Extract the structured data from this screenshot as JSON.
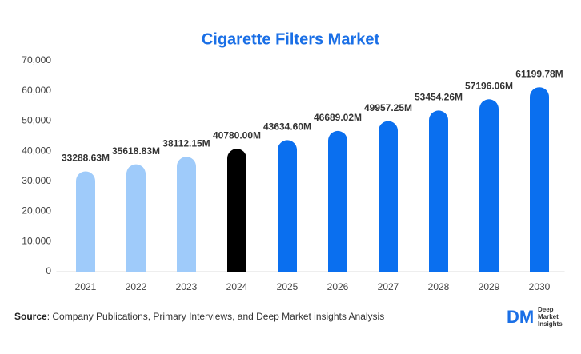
{
  "chart_data": {
    "type": "bar",
    "title": "Cigarette Filters Market",
    "categories": [
      "2021",
      "2022",
      "2023",
      "2024",
      "2025",
      "2026",
      "2027",
      "2028",
      "2029",
      "2030"
    ],
    "values": [
      33288.63,
      35618.83,
      38112.15,
      40780.0,
      43634.6,
      46689.02,
      49957.25,
      53454.26,
      57196.06,
      61199.78
    ],
    "value_labels": [
      "33288.63M",
      "35618.83M",
      "38112.15M",
      "40780.00M",
      "43634.60M",
      "46689.02M",
      "49957.25M",
      "53454.26M",
      "57196.06M",
      "61199.78M"
    ],
    "colors": [
      "#9fcbfa",
      "#9fcbfa",
      "#9fcbfa",
      "#000000",
      "#0a6fef",
      "#0a6fef",
      "#0a6fef",
      "#0a6fef",
      "#0a6fef",
      "#0a6fef"
    ],
    "ylim": [
      0,
      70000
    ],
    "yticks": [
      0,
      {
        "value": 10000,
        "label": "10,000"
      },
      {
        "value": 20000,
        "label": "20,000"
      },
      {
        "value": 30000,
        "label": "30,000"
      },
      {
        "value": 40000,
        "label": "40,000"
      },
      {
        "value": 50000,
        "label": "50,000"
      },
      {
        "value": 60000,
        "label": "60,000"
      },
      {
        "value": 70000,
        "label": "70,000"
      }
    ],
    "grid": false
  },
  "source": {
    "label": "Source",
    "text": ": Company Publications, Primary Interviews, and Deep Market insights Analysis"
  },
  "logo": {
    "mark": "DM",
    "lines": [
      "Deep",
      "Market",
      "Insights"
    ]
  }
}
